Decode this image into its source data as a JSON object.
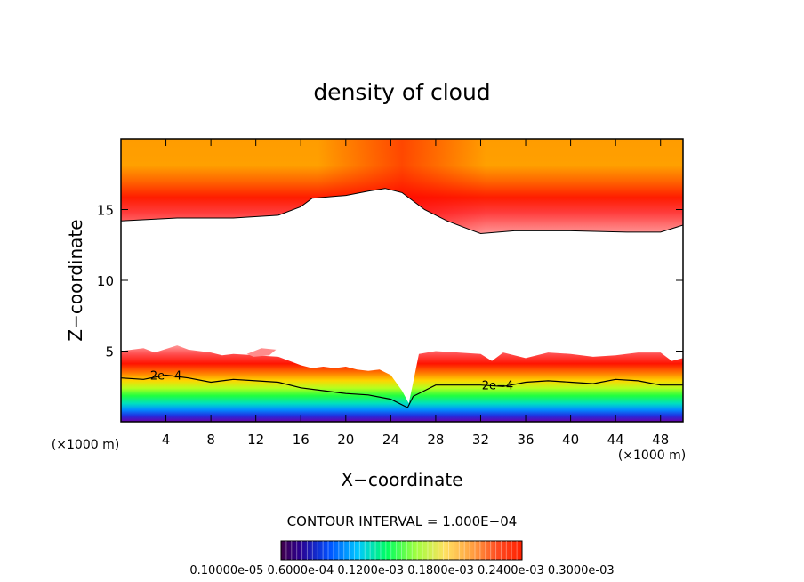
{
  "chart_data": {
    "type": "heatmap",
    "title": "density of cloud",
    "xlabel": "X−coordinate",
    "ylabel": "Z−coordinate",
    "x_unit_left": "(×1000 m)",
    "x_unit_right": "(×1000 m)",
    "xlim": [
      0,
      50
    ],
    "ylim": [
      0,
      20
    ],
    "x_ticks": [
      "4",
      "8",
      "12",
      "16",
      "20",
      "24",
      "28",
      "32",
      "36",
      "40",
      "44",
      "48"
    ],
    "y_ticks": [
      "5",
      "10",
      "15"
    ],
    "contour_interval_text": "CONTOUR INTERVAL = 1.000E−04",
    "contour_label": "2e−4",
    "colorbar_labels": "0.10000e-05 0.6000e-04 0.1200e-03 0.1800e-03 0.2400e-03 0.3000e-03",
    "colorbar_min": 1e-06,
    "colorbar_max": 0.0003,
    "upper_cloud_base": [
      [
        0,
        14.2
      ],
      [
        5,
        14.4
      ],
      [
        10,
        14.4
      ],
      [
        14,
        14.6
      ],
      [
        16,
        15.2
      ],
      [
        17,
        15.8
      ],
      [
        20,
        16.0
      ],
      [
        22,
        16.3
      ],
      [
        23.5,
        16.5
      ],
      [
        25,
        16.2
      ],
      [
        27,
        15.0
      ],
      [
        29,
        14.2
      ],
      [
        31,
        13.6
      ],
      [
        32,
        13.3
      ],
      [
        35,
        13.5
      ],
      [
        40,
        13.5
      ],
      [
        45,
        13.4
      ],
      [
        48,
        13.4
      ],
      [
        50,
        13.9
      ]
    ],
    "lower_cloud_top": [
      [
        0,
        5.0
      ],
      [
        2,
        5.2
      ],
      [
        3,
        4.9
      ],
      [
        5,
        5.4
      ],
      [
        6,
        5.1
      ],
      [
        8,
        4.9
      ],
      [
        9,
        4.7
      ],
      [
        10,
        4.8
      ],
      [
        12,
        4.7
      ],
      [
        14,
        4.6
      ],
      [
        16,
        4.0
      ],
      [
        17,
        3.8
      ],
      [
        18,
        3.9
      ],
      [
        19,
        3.8
      ],
      [
        20,
        3.9
      ],
      [
        21,
        3.7
      ],
      [
        22,
        3.6
      ],
      [
        23,
        3.7
      ],
      [
        24,
        3.3
      ],
      [
        25,
        2.2
      ],
      [
        25.6,
        1.3
      ],
      [
        26,
        2.8
      ],
      [
        26.5,
        4.8
      ],
      [
        28,
        5.0
      ],
      [
        30,
        4.9
      ],
      [
        32,
        4.8
      ],
      [
        33,
        4.3
      ],
      [
        34,
        4.9
      ],
      [
        36,
        4.5
      ],
      [
        38,
        4.9
      ],
      [
        40,
        4.8
      ],
      [
        42,
        4.6
      ],
      [
        44,
        4.7
      ],
      [
        46,
        4.9
      ],
      [
        48,
        4.9
      ],
      [
        49,
        4.3
      ],
      [
        50,
        4.5
      ]
    ],
    "contour_2e4": [
      [
        0,
        3.1
      ],
      [
        2,
        3.0
      ],
      [
        4,
        3.3
      ],
      [
        6,
        3.1
      ],
      [
        8,
        2.8
      ],
      [
        10,
        3.0
      ],
      [
        12,
        2.9
      ],
      [
        14,
        2.8
      ],
      [
        16,
        2.4
      ],
      [
        18,
        2.2
      ],
      [
        20,
        2.0
      ],
      [
        22,
        1.9
      ],
      [
        24,
        1.6
      ],
      [
        25.5,
        1.0
      ],
      [
        26,
        1.8
      ],
      [
        28,
        2.6
      ],
      [
        30,
        2.6
      ],
      [
        32,
        2.6
      ],
      [
        34,
        2.5
      ],
      [
        36,
        2.8
      ],
      [
        38,
        2.9
      ],
      [
        40,
        2.8
      ],
      [
        42,
        2.7
      ],
      [
        44,
        3.0
      ],
      [
        46,
        2.9
      ],
      [
        48,
        2.6
      ],
      [
        50,
        2.6
      ]
    ],
    "cloud_fragment": [
      [
        11.2,
        4.8
      ],
      [
        12.5,
        5.2
      ],
      [
        13.8,
        5.1
      ],
      [
        13.2,
        4.7
      ],
      [
        11.8,
        4.6
      ]
    ],
    "lower_cloud_bottom": [
      [
        0,
        0.8
      ],
      [
        10,
        0.9
      ],
      [
        20,
        0.8
      ],
      [
        24,
        0.7
      ],
      [
        26,
        0.4
      ],
      [
        28,
        0.6
      ],
      [
        35,
        0.8
      ],
      [
        50,
        0.8
      ]
    ]
  }
}
